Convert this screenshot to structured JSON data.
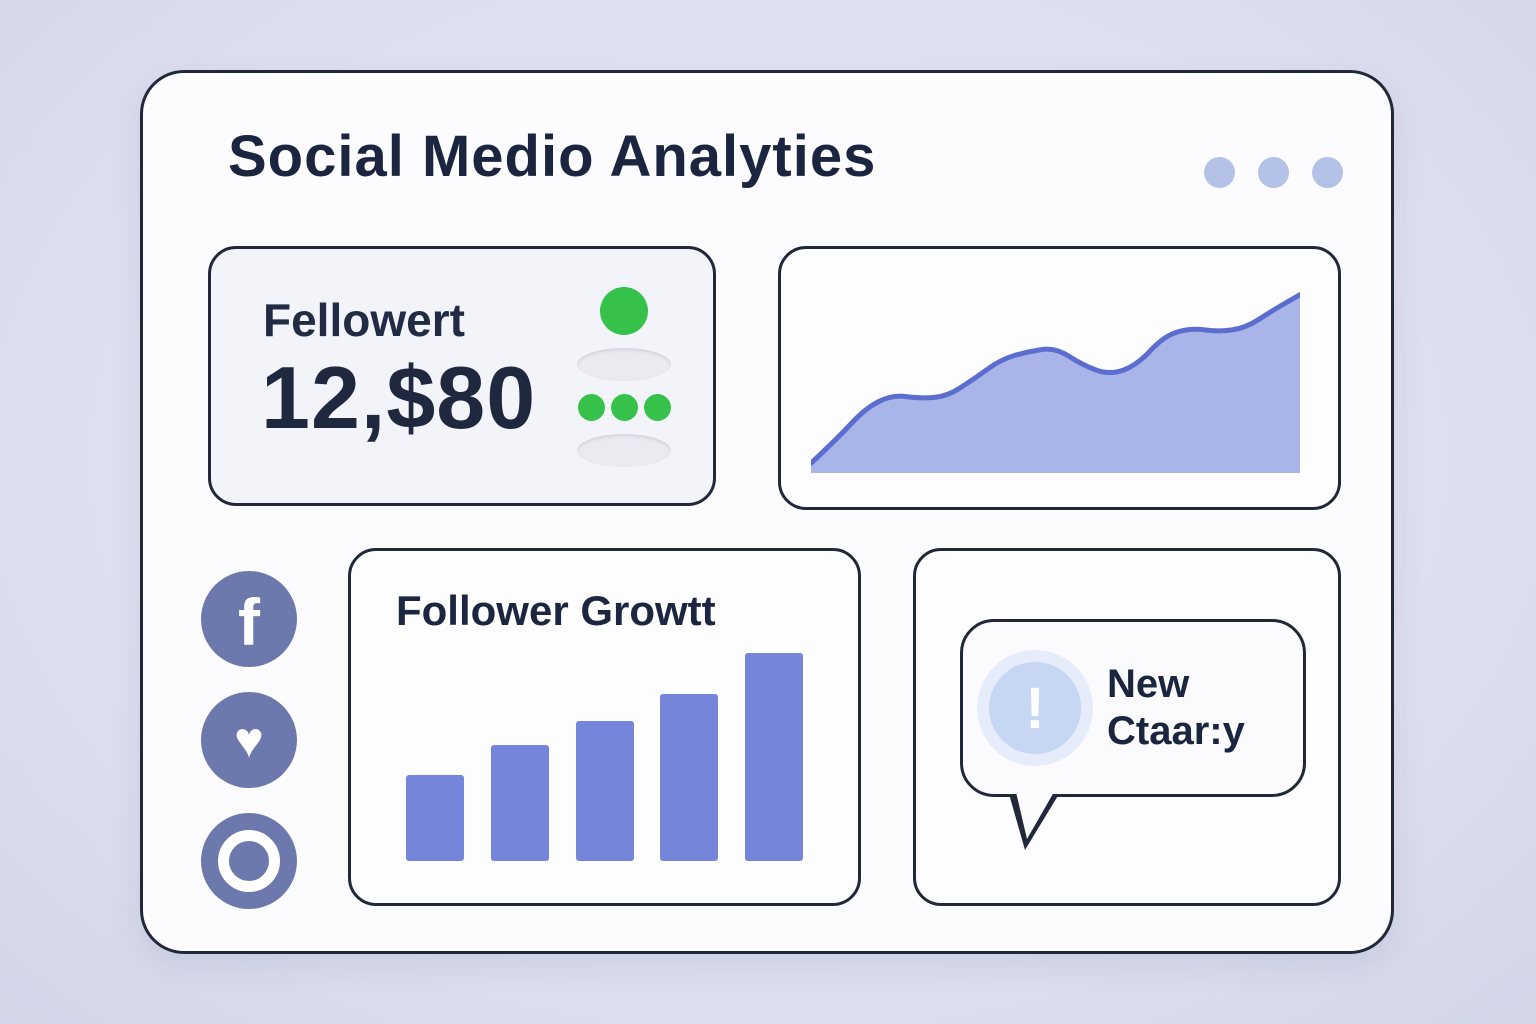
{
  "app": {
    "title": "Social Medio Analyties"
  },
  "colors": {
    "background": "#dee0ee",
    "card_border": "#212839",
    "text_dark": "#1b2540",
    "bar_accent": "#7485da",
    "area_fill": "#a9b5e9",
    "area_line": "#5b6ed0",
    "green": "#36c24a",
    "menu_dot": "#b4c2e7",
    "social_icon_bg": "#6d79ac",
    "alert_circle": "#c7d6f3"
  },
  "followers_card": {
    "label": "Fellowert",
    "value": "12,$80",
    "status_dots": 3
  },
  "comment_card": {
    "alert_glyph": "!",
    "line1": "New",
    "line2": "Ctaar:y"
  },
  "social_icons": {
    "facebook_glyph": "f",
    "heart_glyph": "♥"
  },
  "chart_data": [
    {
      "type": "area",
      "title": "",
      "xlabel": "",
      "ylabel": "",
      "values": [
        5,
        18,
        33,
        40,
        38,
        39,
        48,
        58,
        62,
        64,
        55,
        50,
        55,
        70,
        74,
        72,
        74,
        83,
        91
      ],
      "ylim": [
        0,
        100
      ],
      "grid": false,
      "legend": false
    },
    {
      "type": "bar",
      "title": "Follower Growtt",
      "xlabel": "",
      "ylabel": "",
      "categories": [
        "",
        "",
        "",
        "",
        ""
      ],
      "values": [
        32,
        43,
        52,
        62,
        77
      ],
      "ylim": [
        0,
        80
      ],
      "grid": false,
      "legend": false
    }
  ]
}
